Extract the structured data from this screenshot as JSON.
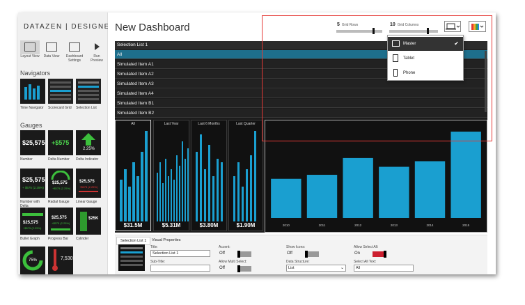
{
  "app": {
    "brand_left": "DATAZEN",
    "brand_right": "DESIGNER"
  },
  "views": [
    {
      "label": "Layout View"
    },
    {
      "label": "Data View"
    },
    {
      "label": "Dashboard Settings"
    },
    {
      "label": "Run Preview"
    }
  ],
  "navigators": {
    "heading": "Navigators",
    "items": [
      "Time Navigator",
      "Scorecard Grid",
      "Selection List"
    ]
  },
  "gauges": {
    "heading": "Gauges",
    "items": [
      {
        "label": "Number",
        "value": "$25,575"
      },
      {
        "label": "Delta Number",
        "value": "+$575"
      },
      {
        "label": "Delta Indicator",
        "value": "2.25%"
      },
      {
        "label": "Number with Delta",
        "value": "$25,575",
        "sub": "+ $575 (2.25%)"
      },
      {
        "label": "Radial Gauge",
        "value": "$25,575",
        "sub": "+$575 (2.25%)"
      },
      {
        "label": "Linear Gauge",
        "value": "$25,575",
        "sub": "+$575 (2.25%)"
      },
      {
        "label": "Bullet Graph",
        "value": "$25,575",
        "sub": "+$575 (2.25%)"
      },
      {
        "label": "Progress Bar",
        "value": "$25,575",
        "sub": "+$575 (2.25%)"
      },
      {
        "label": "Cylinder",
        "value": "$25K"
      },
      {
        "label": "",
        "value": "75%"
      },
      {
        "label": "",
        "value": "7,530"
      }
    ]
  },
  "header": {
    "title": "New Dashboard",
    "grid_rows_value": "5",
    "grid_rows_label": "Grid Rows",
    "grid_columns_value": "10",
    "grid_columns_label": "Grid Columns"
  },
  "selection_list": {
    "title": "Selection List 1",
    "items": [
      "All",
      "Simulated Item A1",
      "Simulated Item A2",
      "Simulated Item A3",
      "Simulated Item A4",
      "Simulated Item B1",
      "Simulated Item B2"
    ],
    "selected_index": 0
  },
  "time_navigator": {
    "periods": [
      {
        "label": "All",
        "value": "$31.5M"
      },
      {
        "label": "Last Year",
        "value": "$5.31M"
      },
      {
        "label": "Last 6 Months",
        "value": "$3.80M"
      },
      {
        "label": "Last Quarter",
        "value": "$1.90M"
      }
    ]
  },
  "chart_data": {
    "type": "bar",
    "categories": [
      "2010",
      "2011",
      "2012",
      "2013",
      "2014",
      "2015"
    ],
    "values": [
      49,
      54,
      75,
      64,
      71,
      108
    ],
    "ylim": [
      0,
      115
    ],
    "color": "#1a9fd0",
    "title": "",
    "xlabel": "",
    "ylabel": ""
  },
  "device_menu": {
    "items": [
      {
        "label": "Master",
        "icon": "laptop-icon",
        "selected": true
      },
      {
        "label": "Tablet",
        "icon": "tablet-icon",
        "selected": false
      },
      {
        "label": "Phone",
        "icon": "phone-icon",
        "selected": false
      }
    ]
  },
  "properties": {
    "tabs": [
      "Selection List 1",
      "Visual Properties"
    ],
    "title_label": "Title:",
    "title_value": "Selection List 1",
    "subtitle_label": "Sub-Title:",
    "subtitle_value": "",
    "accent_label": "Accent:",
    "accent_value": "Off",
    "allow_multi_label": "Allow Multi Select:",
    "allow_multi_value": "Off",
    "show_icons_label": "Show Icons:",
    "show_icons_value": "Off",
    "data_structure_label": "Data Structure:",
    "data_structure_value": "List",
    "allow_select_all_label": "Allow Select All:",
    "allow_select_all_value": "On",
    "select_all_text_label": "Select All Text:",
    "select_all_text_value": "All"
  }
}
